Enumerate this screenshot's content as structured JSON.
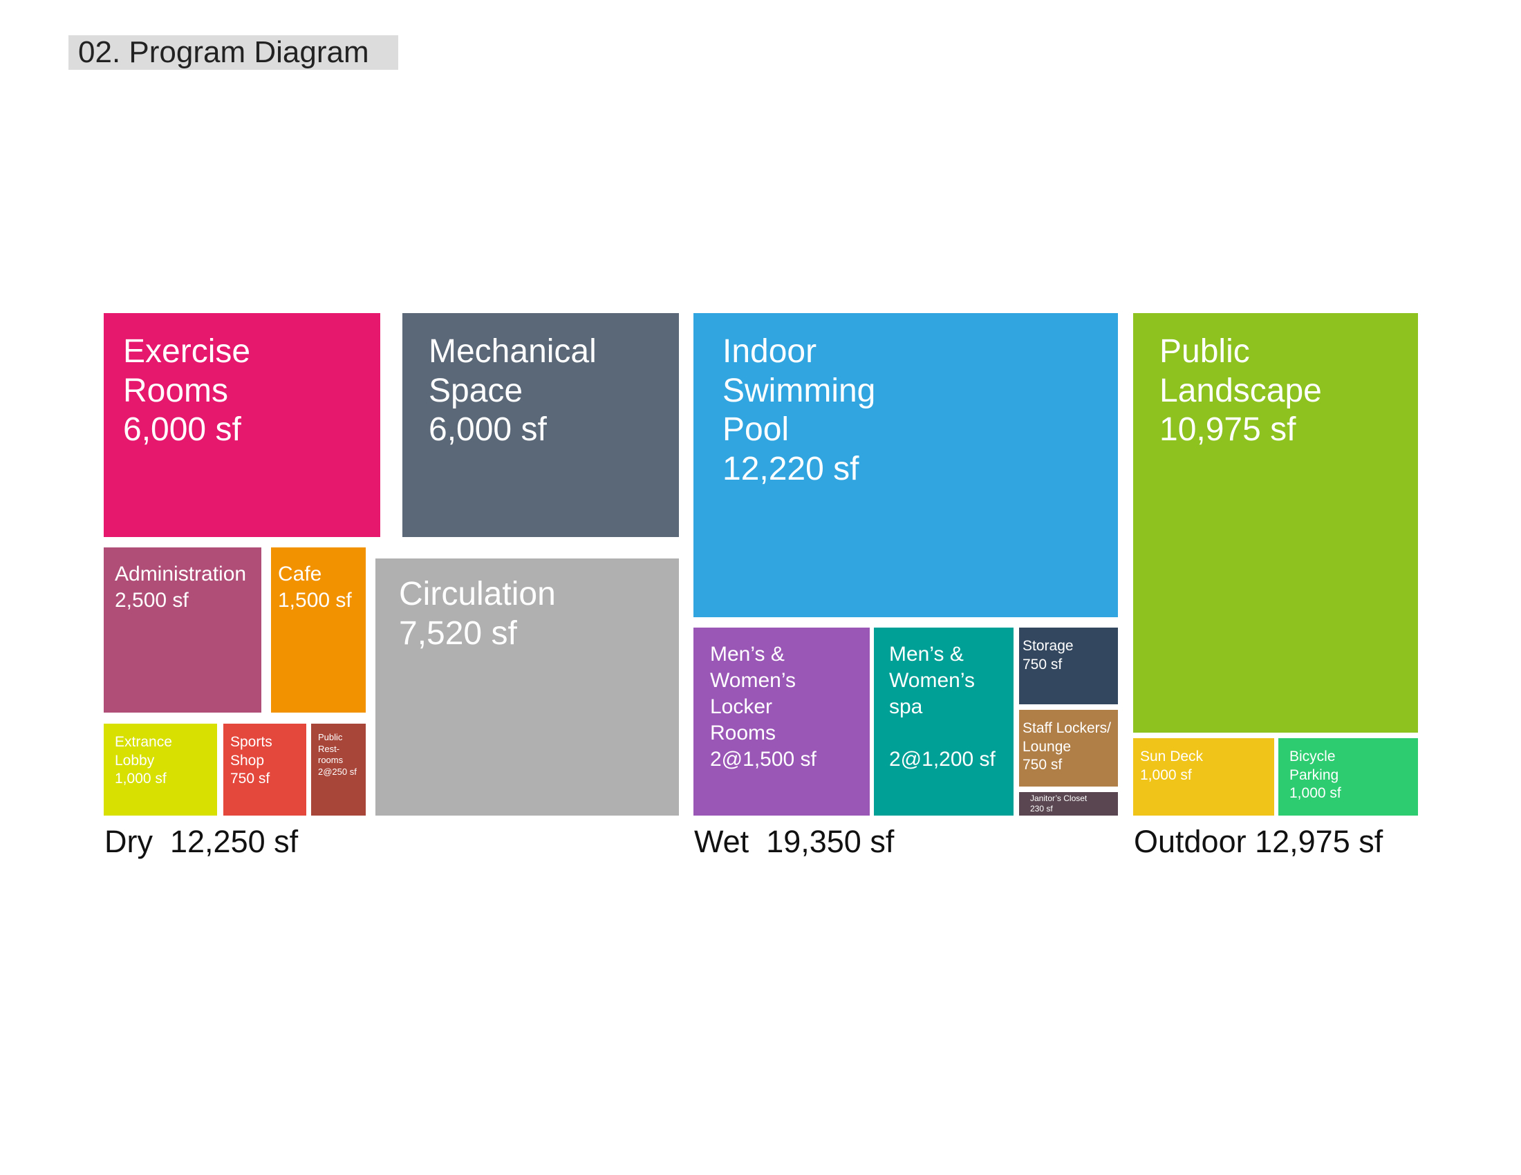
{
  "header": {
    "title": "02. Program Diagram"
  },
  "boxes": [
    {
      "label": [
        "Exercise",
        "Rooms"
      ],
      "area": "6,000 sf",
      "color": "#e5186e"
    },
    {
      "label": [
        "Mechanical",
        "Space"
      ],
      "area": "6,000 sf",
      "color": "#5b6878"
    },
    {
      "label": [
        "Administration"
      ],
      "area": "2,500 sf",
      "color": "#b04e77"
    },
    {
      "label": [
        "Cafe"
      ],
      "area": "1,500 sf",
      "color": "#f29200"
    },
    {
      "label": [
        "Circulation"
      ],
      "area": "7,520 sf",
      "color": "#b0b0b0"
    },
    {
      "label": [
        "Extrance",
        "Lobby"
      ],
      "area": "1,000 sf",
      "color": "#d7e000"
    },
    {
      "label": [
        "Sports",
        "Shop"
      ],
      "area": "750 sf",
      "color": "#e4483d"
    },
    {
      "label": [
        "Public",
        "Rest-",
        "rooms"
      ],
      "area": "2@250 sf",
      "color": "#a8463a"
    },
    {
      "label": [
        "Indoor",
        "Swimming",
        "Pool"
      ],
      "area": "12,220 sf",
      "color": "#30a5e0"
    },
    {
      "label": [
        "Men’s &",
        "Women’s",
        "Locker",
        "Rooms"
      ],
      "area": "2@1,500 sf",
      "color": "#9a57b6"
    },
    {
      "label": [
        "Men’s &",
        "Women’s",
        "spa"
      ],
      "area": "2@1,200 sf",
      "color": "#00a096"
    },
    {
      "label": [
        "Storage"
      ],
      "area": "750 sf",
      "color": "#33475e"
    },
    {
      "label": [
        "Staff Lockers/",
        "Lounge"
      ],
      "area": "750 sf",
      "color": "#b07f47"
    },
    {
      "label": [
        "Janitor’s Closet"
      ],
      "area": "230 sf",
      "color": "#594650"
    },
    {
      "label": [
        "Public",
        "Landscape"
      ],
      "area": "10,975 sf",
      "color": "#8dc21f"
    },
    {
      "label": [
        "Sun Deck"
      ],
      "area": "1,000 sf",
      "color": "#f0c419"
    },
    {
      "label": [
        "Bicycle",
        "Parking"
      ],
      "area": "1,000 sf",
      "color": "#2ecc71"
    }
  ],
  "groups": [
    "Dry  12,250 sf",
    "Wet  19,350 sf",
    "Outdoor 12,975 sf"
  ]
}
